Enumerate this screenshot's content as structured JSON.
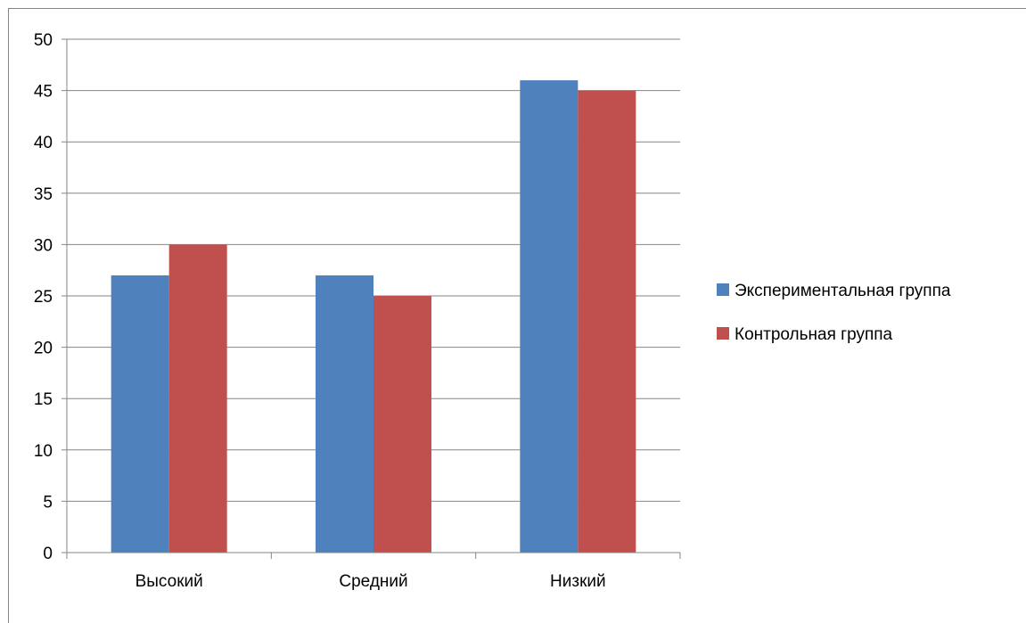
{
  "chart_data": {
    "type": "bar",
    "categories": [
      "Высокий",
      "Средний",
      "Низкий"
    ],
    "series": [
      {
        "name": "Экспериментальная группа",
        "values": [
          27,
          27,
          46
        ],
        "color": "#4F81BD"
      },
      {
        "name": "Контрольная группа",
        "values": [
          30,
          25,
          45
        ],
        "color": "#C0504D"
      }
    ],
    "ylim": [
      0,
      50
    ],
    "yticks": [
      0,
      5,
      10,
      15,
      20,
      25,
      30,
      35,
      40,
      45,
      50
    ],
    "grid": true,
    "legend": "right",
    "gridline_color": "#868686",
    "axis_color": "#868686"
  }
}
